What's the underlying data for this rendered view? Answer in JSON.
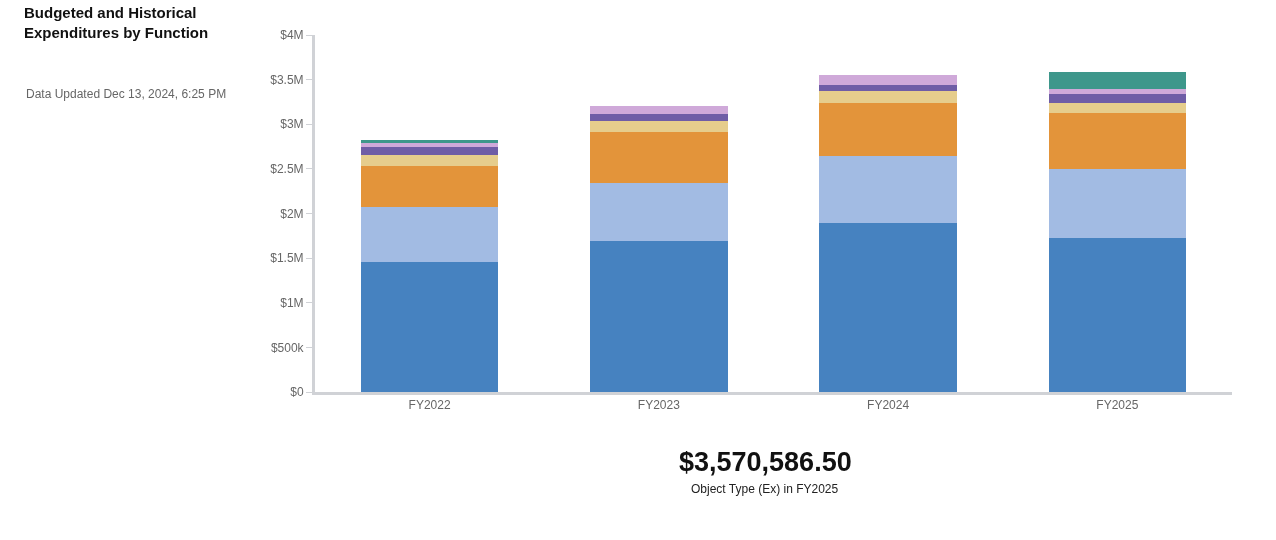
{
  "chart_data": {
    "type": "bar",
    "title": "Budgeted and Historical Expenditures by Function",
    "subtitle": "Data Updated Dec 13, 2024, 6:25 PM",
    "annotations": [
      "$3,570,586.50",
      "Object Type (Ex) in FY2025"
    ],
    "categories": [
      "FY2022",
      "FY2023",
      "FY2024",
      "FY2025"
    ],
    "stacked": true,
    "series": [
      {
        "color": "#4682c0",
        "values": [
          1460000,
          1690000,
          1890000,
          1720000
        ]
      },
      {
        "color": "#a2bbe3",
        "values": [
          610000,
          650000,
          750000,
          780000
        ]
      },
      {
        "color": "#e3943a",
        "values": [
          460000,
          570000,
          600000,
          630000
        ]
      },
      {
        "color": "#e6cd8c",
        "values": [
          130000,
          130000,
          130000,
          110000
        ]
      },
      {
        "color": "#6f5da6",
        "values": [
          80000,
          80000,
          70000,
          100000
        ]
      },
      {
        "color": "#cfa9d9",
        "values": [
          60000,
          80000,
          110000,
          50000
        ]
      },
      {
        "color": "#3e978b",
        "values": [
          20000,
          null,
          null,
          190000
        ]
      }
    ],
    "ylim": [
      0,
      4000000
    ],
    "yticks": [
      {
        "value": 0,
        "label": "$0"
      },
      {
        "value": 500000,
        "label": "$500k"
      },
      {
        "value": 1000000,
        "label": "$1M"
      },
      {
        "value": 1500000,
        "label": "$1.5M"
      },
      {
        "value": 2000000,
        "label": "$2M"
      },
      {
        "value": 2500000,
        "label": "$2.5M"
      },
      {
        "value": 3000000,
        "label": "$3M"
      },
      {
        "value": 3500000,
        "label": "$3.5M"
      },
      {
        "value": 4000000,
        "label": "$4M"
      }
    ]
  }
}
